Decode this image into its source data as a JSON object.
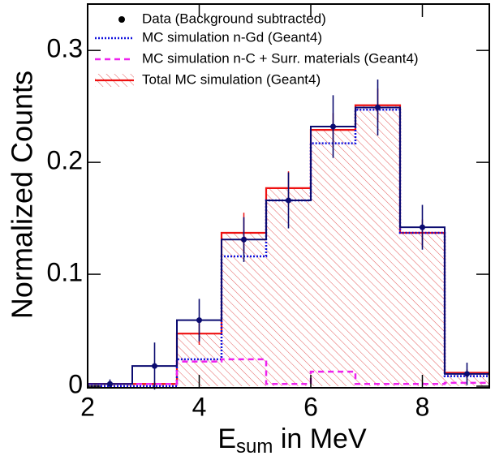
{
  "chart_data": {
    "type": "histogram",
    "xlabel": {
      "main": "E",
      "sub": "sum",
      "rest": " in MeV"
    },
    "ylabel": "Normalized Counts",
    "bins": [
      2.0,
      2.8,
      3.6,
      4.4,
      5.2,
      6.0,
      6.8,
      7.6,
      8.4,
      9.2
    ],
    "xlim": [
      2,
      9.2
    ],
    "xticks": [
      2,
      4,
      6,
      8
    ],
    "ylim": [
      0,
      0.34
    ],
    "yticks": [
      0,
      0.1,
      0.2,
      0.3
    ],
    "legend": "top-left",
    "series": [
      {
        "name": "Data (Background subtracted)",
        "color": "#0b0b70",
        "style": "points",
        "values": [
          0.002,
          0.018,
          0.059,
          0.131,
          0.166,
          0.232,
          0.249,
          0.142,
          0.011
        ],
        "errors": [
          0.004,
          0.021,
          0.019,
          0.02,
          0.025,
          0.028,
          0.025,
          0.02,
          0.01
        ]
      },
      {
        "name": "MC simulation n-Gd (Geant4)",
        "color": "#1010dd",
        "style": "dotted",
        "values": [
          0.0,
          0.0,
          0.024,
          0.116,
          0.166,
          0.217,
          0.247,
          0.137,
          0.009
        ]
      },
      {
        "name": "MC simulation n-C + Surr. materials (Geant4)",
        "color": "#ee22ee",
        "style": "dashed",
        "values": [
          0.002,
          0.002,
          0.022,
          0.024,
          0.002,
          0.013,
          0.002,
          0.002,
          0.003
        ]
      },
      {
        "name": "Total MC simulation (Geant4)",
        "color": "#ee1111",
        "style": "hatched",
        "values": [
          0.002,
          0.002,
          0.047,
          0.137,
          0.177,
          0.229,
          0.251,
          0.137,
          0.012
        ],
        "errors": [
          0.002,
          0.002,
          0.01,
          0.018,
          0.015,
          0.015,
          0.015,
          0.012,
          0.003
        ]
      }
    ]
  }
}
